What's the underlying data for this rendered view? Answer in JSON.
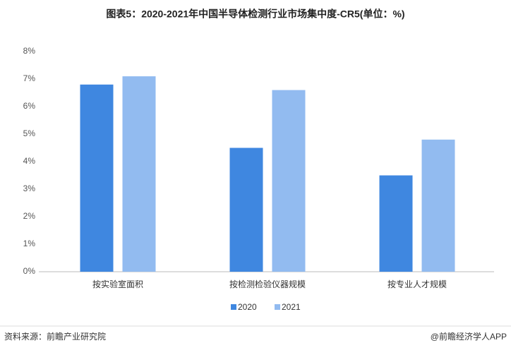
{
  "chart_data": {
    "type": "bar",
    "title": "图表5：2020-2021年中国半导体检测行业市场集中度-CR5(单位：%)",
    "categories": [
      "按实验室面积",
      "按检测检验仪器规模",
      "按专业人才规模"
    ],
    "series": [
      {
        "name": "2020",
        "color": "#3f87e0",
        "values": [
          6.8,
          4.5,
          3.5
        ]
      },
      {
        "name": "2021",
        "color": "#92bbf0",
        "values": [
          7.1,
          6.6,
          4.8
        ]
      }
    ],
    "ylim": [
      0,
      8
    ],
    "yticks": [
      {
        "value": 0,
        "label": "0%"
      },
      {
        "value": 1,
        "label": "1%"
      },
      {
        "value": 2,
        "label": "2%"
      },
      {
        "value": 3,
        "label": "3%"
      },
      {
        "value": 4,
        "label": "4%"
      },
      {
        "value": 5,
        "label": "5%"
      },
      {
        "value": 6,
        "label": "6%"
      },
      {
        "value": 7,
        "label": "7%"
      },
      {
        "value": 8,
        "label": "8%"
      }
    ],
    "source": "资料来源：前瞻产业研究院",
    "credit": "@前瞻经济学人APP"
  }
}
